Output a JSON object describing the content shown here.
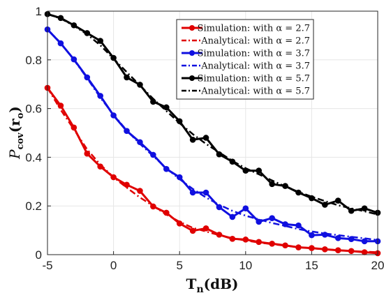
{
  "chart_data": {
    "type": "line",
    "xlabel": "T",
    "xlabel_sub": "n",
    "xlabel_unit": "(dB)",
    "ylabel": "P",
    "ylabel_sub": "cov",
    "ylabel_arg": "(r",
    "ylabel_arg_sub": "o",
    "ylabel_arg_close": ")",
    "xlim": [
      -5,
      20
    ],
    "ylim": [
      0,
      1
    ],
    "xticks": [
      -5,
      0,
      5,
      10,
      15,
      20
    ],
    "yticks": [
      0,
      0.2,
      0.4,
      0.6,
      0.8,
      1
    ],
    "xtick_labels": [
      "-5",
      "0",
      "5",
      "10",
      "15",
      "20"
    ],
    "ytick_labels": [
      "0",
      "0.2",
      "0.4",
      "0.6",
      "0.8",
      "1"
    ],
    "grid": true,
    "legend_position": "top-right",
    "series": [
      {
        "name": "Simulation: with α = 2.7",
        "color": "#e00000",
        "style": "solid-markers",
        "x": [
          -5,
          -4,
          -3,
          -2,
          -1,
          0,
          1,
          2,
          3,
          4,
          5,
          6,
          7,
          8,
          9,
          10,
          11,
          12,
          13,
          14,
          15,
          16,
          17,
          18,
          19,
          20
        ],
        "values": [
          0.685,
          0.612,
          0.522,
          0.415,
          0.362,
          0.318,
          0.287,
          0.262,
          0.198,
          0.172,
          0.128,
          0.098,
          0.108,
          0.082,
          0.065,
          0.062,
          0.052,
          0.045,
          0.038,
          0.03,
          0.027,
          0.022,
          0.018,
          0.015,
          0.01,
          0.006
        ]
      },
      {
        "name": "Analytical: with α = 2.7",
        "color": "#e00000",
        "style": "dashdot",
        "x": [
          -5,
          -4,
          -3,
          -2,
          -1,
          0,
          1,
          2,
          3,
          4,
          5,
          6,
          7,
          8,
          9,
          10,
          11,
          12,
          13,
          14,
          15,
          16,
          17,
          18,
          19,
          20
        ],
        "values": [
          0.685,
          0.595,
          0.515,
          0.432,
          0.37,
          0.318,
          0.275,
          0.235,
          0.2,
          0.165,
          0.135,
          0.11,
          0.095,
          0.08,
          0.068,
          0.058,
          0.05,
          0.043,
          0.037,
          0.031,
          0.026,
          0.022,
          0.018,
          0.015,
          0.012,
          0.01
        ]
      },
      {
        "name": "Simulation: with α = 3.7",
        "color": "#1010e0",
        "style": "solid-markers",
        "x": [
          -5,
          -4,
          -3,
          -2,
          -1,
          0,
          1,
          2,
          3,
          4,
          5,
          6,
          7,
          8,
          9,
          10,
          11,
          12,
          13,
          14,
          15,
          16,
          17,
          18,
          19,
          20
        ],
        "values": [
          0.925,
          0.868,
          0.802,
          0.728,
          0.652,
          0.572,
          0.508,
          0.462,
          0.41,
          0.352,
          0.318,
          0.255,
          0.255,
          0.195,
          0.155,
          0.19,
          0.135,
          0.15,
          0.125,
          0.12,
          0.08,
          0.082,
          0.068,
          0.064,
          0.055,
          0.055
        ]
      },
      {
        "name": "Analytical: with α = 3.7",
        "color": "#1010e0",
        "style": "dashdot",
        "x": [
          -5,
          -4,
          -3,
          -2,
          -1,
          0,
          1,
          2,
          3,
          4,
          5,
          6,
          7,
          8,
          9,
          10,
          11,
          12,
          13,
          14,
          15,
          16,
          17,
          18,
          19,
          20
        ],
        "values": [
          0.925,
          0.87,
          0.8,
          0.725,
          0.645,
          0.575,
          0.51,
          0.455,
          0.405,
          0.355,
          0.31,
          0.27,
          0.235,
          0.205,
          0.18,
          0.16,
          0.145,
          0.13,
          0.118,
          0.105,
          0.095,
          0.087,
          0.08,
          0.073,
          0.067,
          0.06
        ]
      },
      {
        "name": "Simulation: with α = 5.7",
        "color": "#000000",
        "style": "solid-markers",
        "x": [
          -5,
          -4,
          -3,
          -2,
          -1,
          0,
          1,
          2,
          3,
          4,
          5,
          6,
          7,
          8,
          9,
          10,
          11,
          12,
          13,
          14,
          15,
          16,
          17,
          18,
          19,
          20
        ],
        "values": [
          0.988,
          0.972,
          0.942,
          0.91,
          0.878,
          0.808,
          0.728,
          0.698,
          0.628,
          0.605,
          0.548,
          0.472,
          0.48,
          0.412,
          0.382,
          0.345,
          0.345,
          0.29,
          0.282,
          0.255,
          0.232,
          0.205,
          0.222,
          0.18,
          0.19,
          0.172
        ]
      },
      {
        "name": "Analytical: with α = 5.7",
        "color": "#000000",
        "style": "dashdot",
        "x": [
          -5,
          -4,
          -3,
          -2,
          -1,
          0,
          1,
          2,
          3,
          4,
          5,
          6,
          7,
          8,
          9,
          10,
          11,
          12,
          13,
          14,
          15,
          16,
          17,
          18,
          19,
          20
        ],
        "values": [
          0.988,
          0.97,
          0.94,
          0.905,
          0.86,
          0.805,
          0.75,
          0.695,
          0.64,
          0.59,
          0.54,
          0.495,
          0.455,
          0.42,
          0.385,
          0.355,
          0.33,
          0.305,
          0.28,
          0.258,
          0.238,
          0.22,
          0.203,
          0.19,
          0.178,
          0.165
        ]
      }
    ]
  }
}
